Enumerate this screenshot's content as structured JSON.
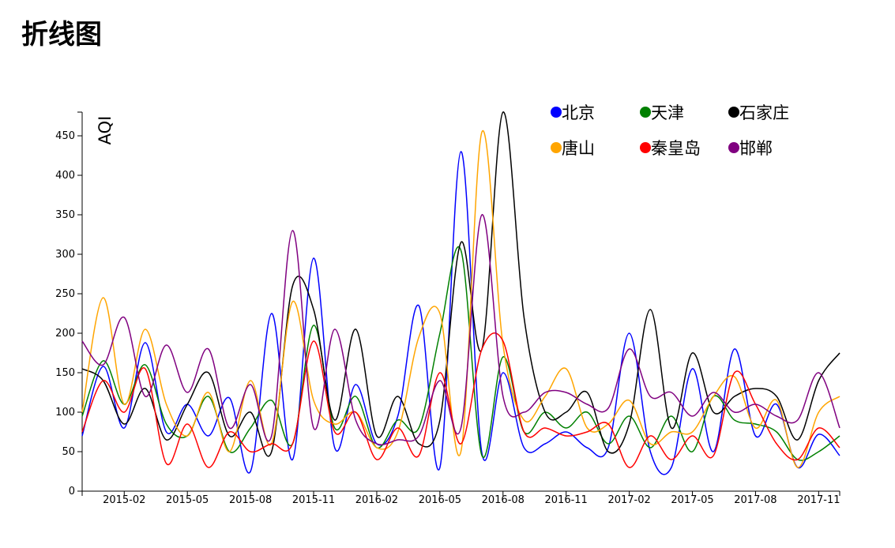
{
  "page": {
    "title": "折线图"
  },
  "chart_data": {
    "type": "line",
    "ylabel": "AQI",
    "xlabel": "",
    "ylim": [
      0,
      480
    ],
    "yticks": [
      0,
      50,
      100,
      150,
      200,
      250,
      300,
      350,
      400,
      450
    ],
    "xticks": [
      "2015-02",
      "2015-05",
      "2015-08",
      "2015-11",
      "2016-02",
      "2016-05",
      "2016-08",
      "2016-11",
      "2017-02",
      "2017-05",
      "2017-08",
      "2017-11"
    ],
    "xlim": [
      "2014-12",
      "2017-12"
    ],
    "legend_position": "top-right",
    "x": [
      "2014-12",
      "2015-01",
      "2015-02",
      "2015-03",
      "2015-04",
      "2015-05",
      "2015-06",
      "2015-07",
      "2015-08",
      "2015-09",
      "2015-10",
      "2015-11",
      "2015-12",
      "2016-01",
      "2016-02",
      "2016-03",
      "2016-04",
      "2016-05",
      "2016-06",
      "2016-07",
      "2016-08",
      "2016-09",
      "2016-10",
      "2016-11",
      "2016-12",
      "2017-01",
      "2017-02",
      "2017-03",
      "2017-04",
      "2017-05",
      "2017-06",
      "2017-07",
      "2017-08",
      "2017-09",
      "2017-10",
      "2017-11",
      "2017-12"
    ],
    "series": [
      {
        "name": "北京",
        "color": "#0000ff",
        "values": [
          70,
          158,
          80,
          188,
          75,
          110,
          70,
          118,
          25,
          225,
          40,
          295,
          55,
          135,
          60,
          95,
          235,
          30,
          430,
          48,
          150,
          55,
          60,
          75,
          55,
          55,
          200,
          50,
          30,
          155,
          50,
          180,
          70,
          110,
          30,
          72,
          45
        ]
      },
      {
        "name": "天津",
        "color": "#008000",
        "values": [
          95,
          165,
          110,
          160,
          85,
          70,
          120,
          50,
          80,
          115,
          60,
          210,
          80,
          120,
          55,
          90,
          80,
          200,
          305,
          45,
          170,
          75,
          100,
          80,
          100,
          60,
          95,
          55,
          95,
          50,
          120,
          90,
          85,
          75,
          40,
          50,
          70
        ]
      },
      {
        "name": "石家庄",
        "color": "#000000",
        "values": [
          155,
          140,
          85,
          130,
          65,
          110,
          150,
          70,
          100,
          50,
          260,
          230,
          90,
          205,
          70,
          120,
          60,
          90,
          315,
          180,
          480,
          220,
          100,
          100,
          125,
          50,
          85,
          230,
          80,
          175,
          100,
          120,
          130,
          120,
          65,
          140,
          175
        ]
      },
      {
        "name": "唐山",
        "color": "#ffa500",
        "values": [
          100,
          245,
          110,
          205,
          110,
          70,
          125,
          50,
          140,
          60,
          240,
          115,
          85,
          100,
          55,
          75,
          195,
          225,
          50,
          455,
          185,
          90,
          120,
          155,
          80,
          85,
          115,
          60,
          75,
          75,
          120,
          145,
          80,
          115,
          30,
          100,
          120
        ]
      },
      {
        "name": "秦皇岛",
        "color": "#ff0000",
        "values": [
          75,
          140,
          100,
          155,
          35,
          85,
          30,
          75,
          50,
          60,
          60,
          190,
          75,
          100,
          40,
          80,
          45,
          150,
          60,
          180,
          190,
          75,
          80,
          70,
          75,
          85,
          30,
          70,
          40,
          70,
          45,
          150,
          110,
          60,
          40,
          80,
          55
        ]
      },
      {
        "name": "邯郸",
        "color": "#800080",
        "values": [
          190,
          160,
          220,
          120,
          185,
          125,
          180,
          80,
          135,
          70,
          330,
          80,
          205,
          90,
          60,
          65,
          70,
          140,
          80,
          350,
          120,
          100,
          125,
          125,
          110,
          105,
          180,
          120,
          125,
          95,
          125,
          100,
          110,
          95,
          90,
          150,
          80
        ]
      }
    ]
  }
}
